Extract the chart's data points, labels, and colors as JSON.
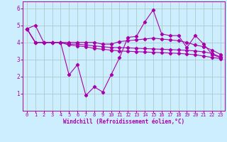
{
  "background_color": "#cceeff",
  "grid_color": "#aacccc",
  "line_color": "#aa00aa",
  "xlabel": "Windchill (Refroidissement éolien,°C)",
  "xlim": [
    -0.5,
    23.5
  ],
  "ylim": [
    0,
    6.4
  ],
  "yticks": [
    1,
    2,
    3,
    4,
    5,
    6
  ],
  "xticks": [
    0,
    1,
    2,
    3,
    4,
    5,
    6,
    7,
    8,
    9,
    10,
    11,
    12,
    13,
    14,
    15,
    16,
    17,
    18,
    19,
    20,
    21,
    22,
    23
  ],
  "series": [
    [
      4.8,
      5.0,
      4.0,
      4.0,
      4.0,
      2.1,
      2.7,
      0.9,
      1.4,
      1.1,
      2.1,
      3.1,
      4.3,
      4.35,
      5.2,
      5.9,
      4.5,
      4.4,
      4.4,
      3.7,
      4.4,
      3.9,
      3.3,
      3.1
    ],
    [
      4.8,
      4.0,
      4.0,
      4.0,
      4.0,
      4.0,
      4.0,
      4.0,
      4.0,
      3.9,
      3.9,
      4.05,
      4.1,
      4.15,
      4.2,
      4.25,
      4.2,
      4.15,
      4.1,
      4.0,
      3.85,
      3.75,
      3.55,
      3.3
    ],
    [
      4.8,
      4.0,
      4.0,
      4.0,
      4.0,
      3.9,
      3.9,
      3.85,
      3.8,
      3.75,
      3.7,
      3.7,
      3.68,
      3.66,
      3.64,
      3.62,
      3.6,
      3.58,
      3.56,
      3.54,
      3.5,
      3.45,
      3.35,
      3.15
    ],
    [
      4.8,
      4.0,
      4.0,
      4.0,
      4.0,
      3.85,
      3.8,
      3.75,
      3.65,
      3.6,
      3.55,
      3.5,
      3.48,
      3.46,
      3.44,
      3.42,
      3.4,
      3.38,
      3.36,
      3.32,
      3.28,
      3.2,
      3.12,
      3.05
    ]
  ]
}
